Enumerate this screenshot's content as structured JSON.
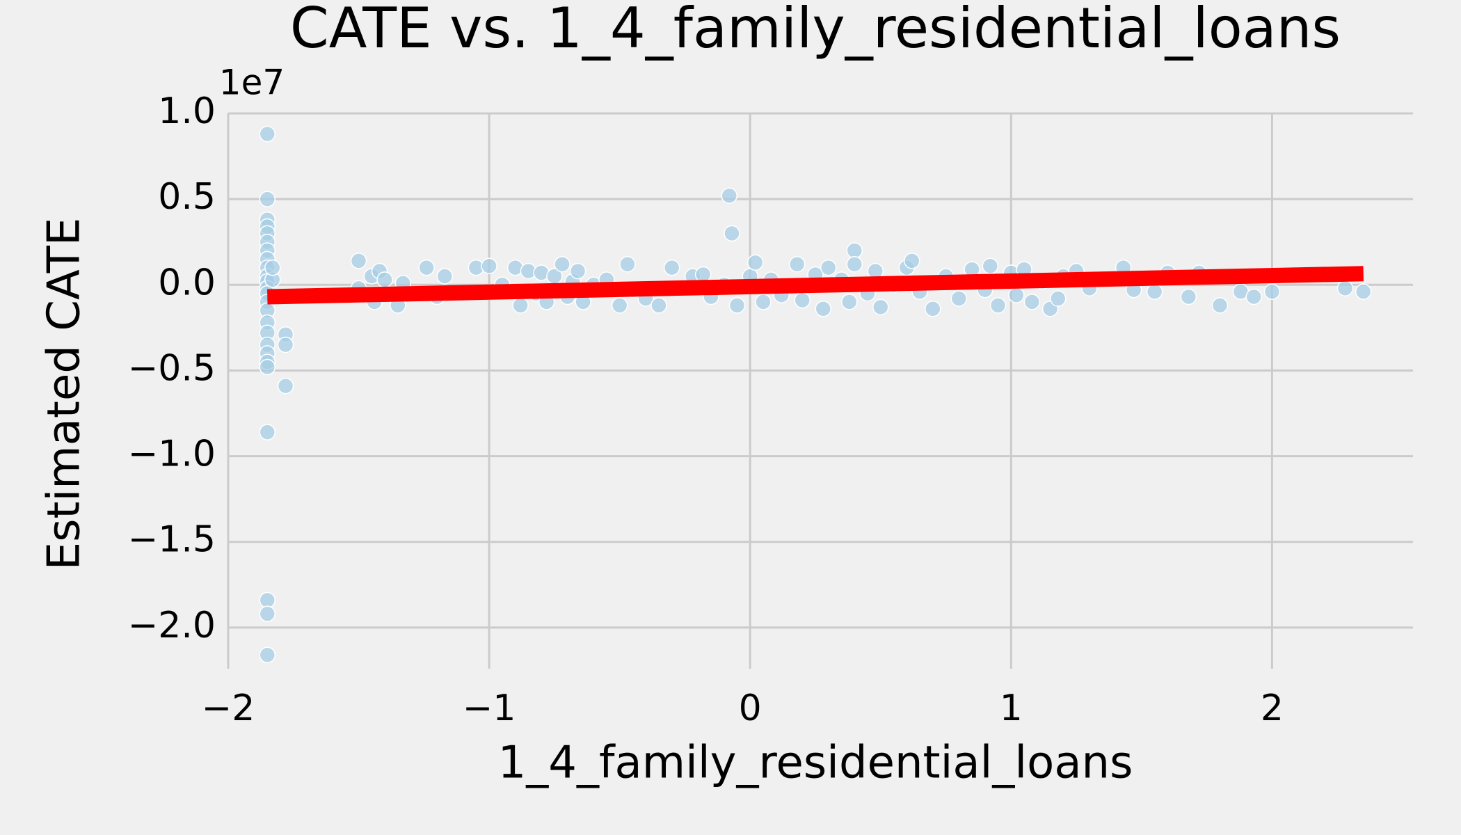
{
  "chart_data": {
    "type": "scatter",
    "title": "CATE vs. 1_4_family_residential_loans",
    "x_label": "1_4_family_residential_loans",
    "y_label": "Estimated CATE",
    "y_offset_label": "1e7",
    "xlim": [
      -2,
      2.54
    ],
    "ylim": [
      -2.24,
      1.0
    ],
    "xticks": [
      {
        "value": -2,
        "label": "−2"
      },
      {
        "value": -1,
        "label": "−1"
      },
      0,
      1,
      2
    ],
    "yticks": [
      {
        "value": -2,
        "label": "−2.0"
      },
      {
        "value": -1.5,
        "label": "−1.5"
      },
      {
        "value": -1,
        "label": "−1.0"
      },
      {
        "value": -0.5,
        "label": "−0.5"
      },
      {
        "value": 0,
        "label": "0.0"
      },
      0.5,
      {
        "value": 1,
        "label": "1.0"
      }
    ],
    "grid": true,
    "series": [
      {
        "color": "#a6cde5",
        "x": [
          -1.85,
          -1.85,
          -1.85,
          -1.85,
          -1.85,
          -1.85,
          -1.85,
          -1.85,
          -1.85,
          -1.85,
          -1.85,
          -1.85,
          -1.85,
          -1.85,
          -1.85,
          -1.85,
          -1.85,
          -1.85,
          -1.85,
          -1.85,
          -1.85,
          -1.85,
          -1.85,
          -1.85,
          -1.85,
          -1.78,
          -1.78,
          -1.78,
          -1.83,
          -1.83,
          -0.08,
          -0.07,
          0.4,
          -1.5,
          -1.5,
          -1.45,
          -1.44,
          -1.42,
          -1.4,
          -1.35,
          -1.33,
          -1.24,
          -1.2,
          -1.17,
          -1.05,
          -1.0,
          -0.95,
          -0.9,
          -0.88,
          -0.85,
          -0.82,
          -0.8,
          -0.78,
          -0.75,
          -0.72,
          -0.7,
          -0.68,
          -0.66,
          -0.64,
          -0.6,
          -0.55,
          -0.5,
          -0.47,
          -0.45,
          -0.4,
          -0.35,
          -0.3,
          -0.28,
          -0.22,
          -0.18,
          -0.15,
          -0.1,
          -0.05,
          0.0,
          0.02,
          0.05,
          0.08,
          0.12,
          0.18,
          0.2,
          0.25,
          0.28,
          0.3,
          0.35,
          0.38,
          0.4,
          0.45,
          0.48,
          0.5,
          0.55,
          0.6,
          0.62,
          0.65,
          0.7,
          0.75,
          0.8,
          0.85,
          0.9,
          0.92,
          0.95,
          1.0,
          1.02,
          1.05,
          1.08,
          1.12,
          1.15,
          1.18,
          1.2,
          1.25,
          1.3,
          1.43,
          1.47,
          1.55,
          1.6,
          1.68,
          1.72,
          1.8,
          1.88,
          1.93,
          2.0,
          2.28,
          2.35
        ],
        "y": [
          0.88,
          0.5,
          0.38,
          0.34,
          0.3,
          0.25,
          0.2,
          0.15,
          0.1,
          0.05,
          0.02,
          -0.02,
          -0.05,
          -0.1,
          -0.15,
          -0.22,
          -0.28,
          -0.35,
          -0.4,
          -0.45,
          -0.48,
          -0.86,
          -1.84,
          -1.92,
          -2.16,
          -0.29,
          -0.35,
          -0.59,
          0.03,
          0.1,
          0.52,
          0.3,
          0.2,
          -0.02,
          0.14,
          0.05,
          -0.1,
          0.08,
          0.03,
          -0.12,
          0.01,
          0.1,
          -0.07,
          0.05,
          0.1,
          0.11,
          0.0,
          0.1,
          -0.12,
          0.08,
          -0.05,
          0.07,
          -0.1,
          0.05,
          0.12,
          -0.07,
          0.02,
          0.08,
          -0.1,
          0.0,
          0.03,
          -0.12,
          0.12,
          -0.03,
          -0.08,
          -0.12,
          0.1,
          -0.02,
          0.05,
          0.06,
          -0.07,
          0.0,
          -0.12,
          0.05,
          0.13,
          -0.1,
          0.03,
          -0.06,
          0.12,
          -0.09,
          0.06,
          -0.14,
          0.1,
          0.03,
          -0.1,
          0.12,
          -0.05,
          0.08,
          -0.13,
          0.0,
          0.1,
          0.14,
          -0.04,
          -0.14,
          0.05,
          -0.08,
          0.09,
          -0.03,
          0.11,
          -0.12,
          0.07,
          -0.06,
          0.09,
          -0.1,
          0.02,
          -0.14,
          -0.08,
          0.05,
          0.08,
          -0.02,
          0.1,
          -0.03,
          -0.04,
          0.07,
          -0.07,
          0.07,
          -0.12,
          -0.04,
          -0.07,
          -0.04,
          -0.02,
          -0.04
        ]
      }
    ],
    "trend": {
      "color": "#ff0000",
      "x": [
        -1.85,
        2.35
      ],
      "y": [
        -0.07,
        0.065
      ]
    }
  }
}
